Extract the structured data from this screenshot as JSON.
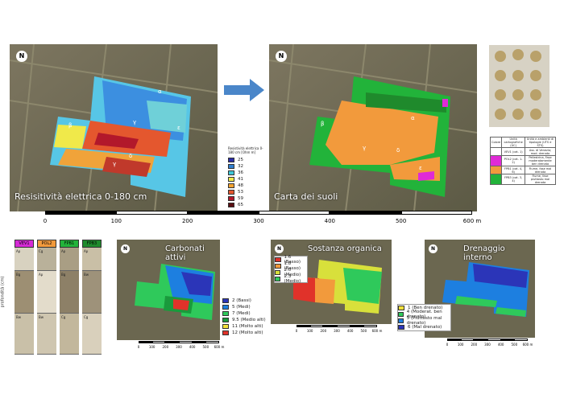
{
  "maps": {
    "resistivity": {
      "caption": "Resisitività elettrica 0-180 cm",
      "labels": [
        "β",
        "α",
        "γ",
        "δ",
        "γ",
        "ε"
      ]
    },
    "soils": {
      "caption": "Carta dei suoli",
      "labels": [
        "α",
        "β",
        "γ",
        "δ",
        "ε"
      ]
    },
    "carbonati": {
      "caption": "Carbonati attivi"
    },
    "sostanza": {
      "caption": "Sostanza organica"
    },
    "drenaggio": {
      "caption": "Drenaggio interno"
    }
  },
  "resistivity_legend": {
    "title": "Resistività elettrica 0-180 cm [Ohm m]",
    "items": [
      {
        "label": "25",
        "color": "#2b2ea8"
      },
      {
        "label": "32",
        "color": "#2f7fd0"
      },
      {
        "label": "36",
        "color": "#3fc6d6"
      },
      {
        "label": "41",
        "color": "#f0e94a"
      },
      {
        "label": "48",
        "color": "#f4a331"
      },
      {
        "label": "53",
        "color": "#e4572e"
      },
      {
        "label": "59",
        "color": "#b2182b"
      },
      {
        "label": "65",
        "color": "#5a0f12"
      }
    ]
  },
  "soil_table": {
    "headers": [
      "Colore",
      "Unità cartografiche (UC)",
      "Unità e ambienti di tipologie (UTS e STS)"
    ],
    "rows": [
      {
        "color": "#ffffff",
        "uc": "VEV1 (cat. 1)",
        "uts": "Ass. di Venezia; mod. drenato"
      },
      {
        "color": "#e02ad6",
        "uc": "POL2 (cat. 1-2)",
        "uts": "Pellestrina, Fase moderatamente ben drenata"
      },
      {
        "color": "#f29a3c",
        "uc": "FPB1 (cat. 4, 6)",
        "uts": "Fiume, fase mal drenata"
      },
      {
        "color": "#22b33a",
        "uc": "FPB3 (cat. 3, 4)",
        "uts": "Fiume, fase piuttosto mal drenata"
      }
    ]
  },
  "scale_big": {
    "ticks": [
      "0",
      "100",
      "200",
      "300",
      "400",
      "500",
      "600 m"
    ]
  },
  "scale_small": {
    "ticks": [
      "0",
      "100",
      "200",
      "300",
      "400",
      "500",
      "600 m"
    ]
  },
  "profiles": {
    "headers": [
      {
        "label": "VEV1",
        "color": "#d62ad6"
      },
      {
        "label": "POL2",
        "color": "#f29a3c"
      },
      {
        "label": "FPB1",
        "color": "#22b33a"
      },
      {
        "label": "FPB3",
        "color": "#1f8a2c"
      }
    ],
    "axis_label": "profondità (cm)",
    "horizons": [
      "Ap",
      "Bg",
      "Bw",
      "Cg",
      "Ap",
      "Bw",
      "Ap",
      "Bg",
      "Cg",
      "Ap",
      "Bw",
      "Cg"
    ]
  },
  "carbonati_legend": {
    "items": [
      {
        "label": "2 (Bassi)",
        "color": "#2b35b8"
      },
      {
        "label": "5 (Medi)",
        "color": "#1d7fe0"
      },
      {
        "label": "7 (Medi)",
        "color": "#2fc95b"
      },
      {
        "label": "9.5 (Medio alti)",
        "color": "#1a9a3c"
      },
      {
        "label": "11 (Molto alti)",
        "color": "#f3e13b"
      },
      {
        "label": "12 (Molto alti)",
        "color": "#e0322a"
      }
    ]
  },
  "sostanza_legend": {
    "items": [
      {
        "label": "1.6 (Basso)",
        "color": "#e0322a"
      },
      {
        "label": "1.8 (Basso)",
        "color": "#f29a3c"
      },
      {
        "label": "2.0 (Medio)",
        "color": "#d8e03b"
      },
      {
        "label": "2.3 (Medio)",
        "color": "#2fc95b"
      }
    ]
  },
  "drenaggio_legend": {
    "items": [
      {
        "label": "1 (Ben drenato)",
        "color": "#f3e13b"
      },
      {
        "label": "4 (Moderat. ben drenato)",
        "color": "#2fc95b"
      },
      {
        "label": "5 (Piuttosto mal drenato)",
        "color": "#1d7fe0"
      },
      {
        "label": "6 (Mal drenato)",
        "color": "#2b35b8"
      }
    ]
  }
}
